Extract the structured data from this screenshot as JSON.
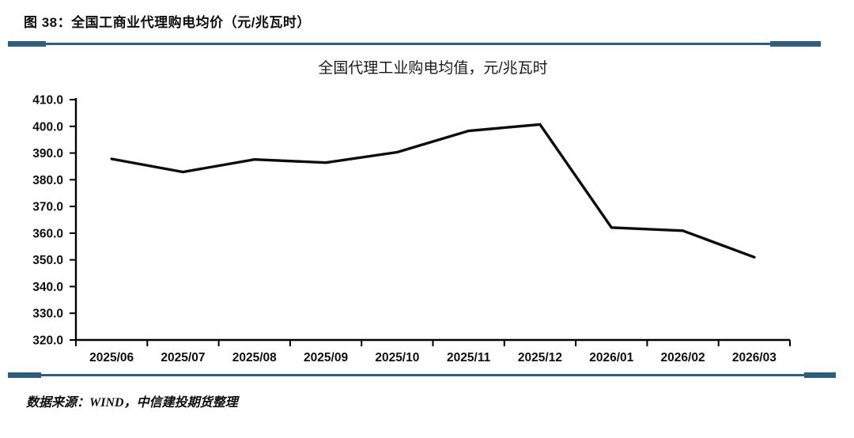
{
  "page": {
    "figure_label": "图 38：全国工商业代理购电均价（元/兆瓦时）",
    "source_note": "数据来源：WIND，中信建投期货整理"
  },
  "colors": {
    "divider": "#2f5d7e",
    "axis": "#000000",
    "line": "#0d0d0d",
    "background": "#ffffff"
  },
  "chart_data": {
    "type": "line",
    "title": "全国代理工业购电均值，元/兆瓦时",
    "categories": [
      "2025/06",
      "2025/07",
      "2025/08",
      "2025/09",
      "2025/10",
      "2025/11",
      "2025/12",
      "2026/01",
      "2026/02",
      "2026/03"
    ],
    "values": [
      387.8,
      382.9,
      387.6,
      386.4,
      390.3,
      398.3,
      400.7,
      362.1,
      360.9,
      351.0
    ],
    "unit": "元/兆瓦时",
    "xlabel": "",
    "ylabel": "",
    "ylim": [
      320,
      410
    ],
    "ytick_step": 10,
    "ytick_decimals": 1,
    "grid": false,
    "legend": "none",
    "line_color": "#0d0d0d"
  }
}
